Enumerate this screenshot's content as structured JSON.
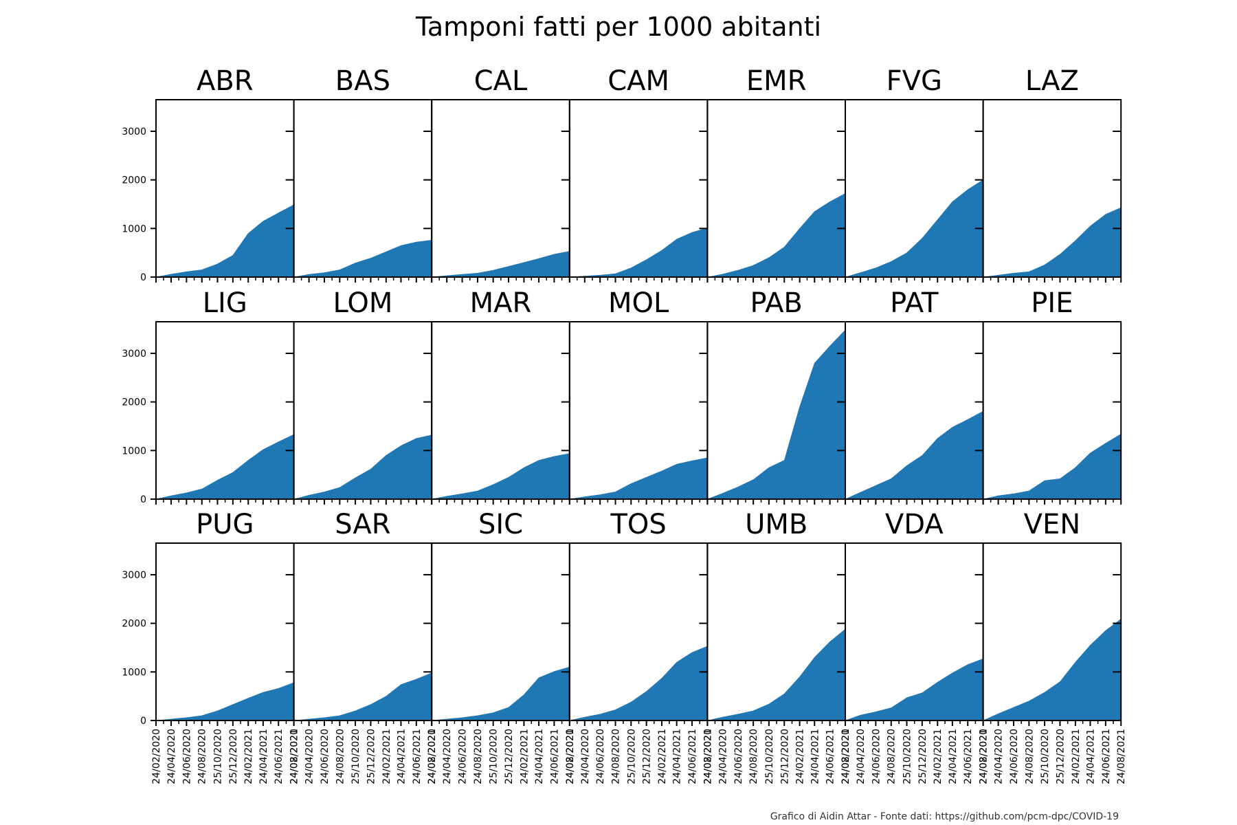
{
  "chart_data": {
    "type": "area",
    "title": "Tamponi fatti per 1000 abitanti",
    "footer": "Grafico di Aidin Attar - Fonte dati: https://github.com/pcm-dpc/COVID-19",
    "color": "#1f77b4",
    "ylim": [
      0,
      3650
    ],
    "yticks": [
      0,
      1000,
      2000,
      3000
    ],
    "xlim": [
      "2020-02-24",
      "2021-08-24"
    ],
    "x_dates": [
      "2020-02-24",
      "2020-04-24",
      "2020-06-24",
      "2020-08-24",
      "2020-10-25",
      "2020-12-25",
      "2021-02-24",
      "2021-04-24",
      "2021-06-24",
      "2021-08-24"
    ],
    "xtick_labels": [
      "24/02/2020",
      "24/04/2020",
      "24/06/2020",
      "24/08/2020",
      "25/10/2020",
      "25/12/2020",
      "24/02/2021",
      "24/04/2021",
      "24/06/2021",
      "24/08/2021"
    ],
    "grid": false,
    "panels": [
      {
        "name": "ABR",
        "values": [
          0,
          60,
          110,
          150,
          270,
          450,
          900,
          1150,
          1320,
          1490
        ]
      },
      {
        "name": "BAS",
        "values": [
          0,
          55,
          90,
          150,
          290,
          390,
          520,
          650,
          720,
          760
        ]
      },
      {
        "name": "CAL",
        "values": [
          0,
          30,
          55,
          80,
          140,
          220,
          300,
          380,
          470,
          530
        ]
      },
      {
        "name": "CAM",
        "values": [
          0,
          20,
          40,
          70,
          190,
          360,
          550,
          780,
          920,
          1010
        ]
      },
      {
        "name": "EMR",
        "values": [
          0,
          60,
          140,
          240,
          400,
          620,
          1000,
          1350,
          1550,
          1720
        ]
      },
      {
        "name": "FVG",
        "values": [
          0,
          90,
          190,
          320,
          500,
          800,
          1180,
          1550,
          1800,
          2000
        ]
      },
      {
        "name": "LAZ",
        "values": [
          0,
          40,
          80,
          110,
          250,
          470,
          750,
          1050,
          1290,
          1430
        ]
      },
      {
        "name": "LIG",
        "values": [
          0,
          70,
          130,
          210,
          390,
          550,
          800,
          1020,
          1180,
          1330
        ]
      },
      {
        "name": "LOM",
        "values": [
          0,
          80,
          150,
          240,
          440,
          620,
          900,
          1100,
          1250,
          1320
        ]
      },
      {
        "name": "MAR",
        "values": [
          0,
          60,
          110,
          170,
          300,
          450,
          650,
          800,
          880,
          940
        ]
      },
      {
        "name": "MOL",
        "values": [
          0,
          50,
          90,
          150,
          320,
          450,
          580,
          720,
          790,
          850
        ]
      },
      {
        "name": "PAB",
        "values": [
          0,
          120,
          250,
          400,
          650,
          800,
          1900,
          2800,
          3150,
          3480
        ]
      },
      {
        "name": "PAT",
        "values": [
          0,
          140,
          280,
          420,
          690,
          900,
          1250,
          1480,
          1640,
          1810
        ]
      },
      {
        "name": "PIE",
        "values": [
          0,
          70,
          110,
          170,
          380,
          420,
          650,
          950,
          1150,
          1340
        ]
      },
      {
        "name": "PUG",
        "values": [
          0,
          30,
          60,
          100,
          200,
          330,
          460,
          580,
          660,
          780
        ]
      },
      {
        "name": "SAR",
        "values": [
          0,
          30,
          60,
          100,
          200,
          330,
          500,
          740,
          850,
          980
        ]
      },
      {
        "name": "SIC",
        "values": [
          0,
          30,
          60,
          100,
          160,
          270,
          530,
          880,
          1010,
          1100
        ]
      },
      {
        "name": "TOS",
        "values": [
          0,
          70,
          130,
          220,
          380,
          600,
          870,
          1200,
          1400,
          1530
        ]
      },
      {
        "name": "UMB",
        "values": [
          0,
          70,
          130,
          200,
          340,
          550,
          900,
          1300,
          1620,
          1880
        ]
      },
      {
        "name": "VDA",
        "values": [
          0,
          110,
          180,
          260,
          470,
          570,
          790,
          980,
          1150,
          1270
        ]
      },
      {
        "name": "VEN",
        "values": [
          0,
          140,
          270,
          400,
          580,
          800,
          1200,
          1550,
          1850,
          2090
        ]
      }
    ]
  }
}
